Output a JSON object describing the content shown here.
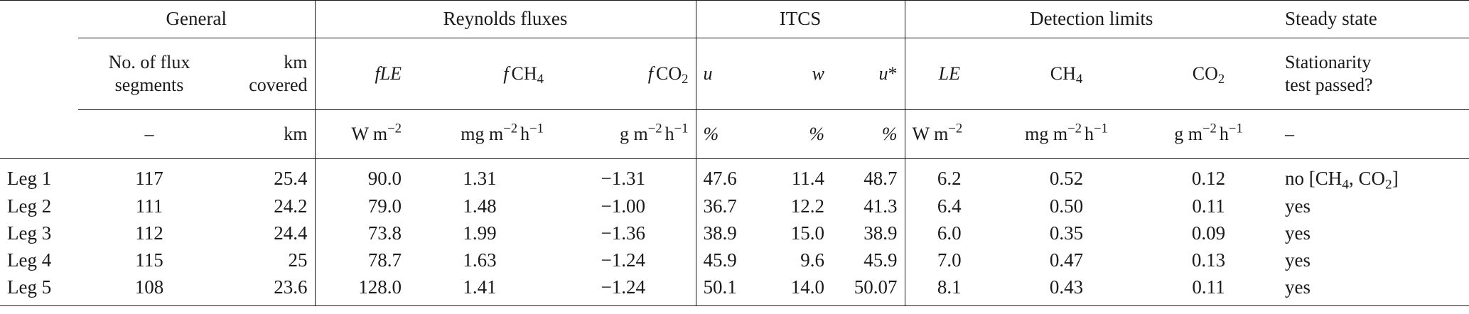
{
  "groups": {
    "general": "General",
    "reynolds": "Reynolds fluxes",
    "itcs": "ITCS",
    "detection": "Detection limits",
    "steady": "Steady state"
  },
  "subheaders": {
    "segments_line1": "No. of flux",
    "segments_line2": "segments",
    "km_line1": "km",
    "km_line2": "covered",
    "f_le_f": "f",
    "f_le_le": "LE",
    "f_ch4_f": "f",
    "f_ch4_main": "CH",
    "f_ch4_sub": "4",
    "f_co2_f": "f",
    "f_co2_main": "CO",
    "f_co2_sub": "2",
    "u": "u",
    "w": "w",
    "ustar": "u",
    "ustar_mark": "*",
    "le": "LE",
    "ch4_main": "CH",
    "ch4_sub": "4",
    "co2_main": "CO",
    "co2_sub": "2",
    "stationarity_line1": "Stationarity",
    "stationarity_line2": "test passed?"
  },
  "units": {
    "segments": "–",
    "km": "km",
    "w_m": "W m",
    "w_m_exp": "−2",
    "mg_m": "mg m",
    "mg_m_exp": "−2",
    "mg_h": "h",
    "mg_h_exp": "−1",
    "g_m": "g m",
    "g_m_exp": "−2",
    "g_h": "h",
    "g_h_exp": "−1",
    "pct_u": "%",
    "pct_w": "%",
    "pct_ustar": "%",
    "det_w_m": "W m",
    "det_w_m_exp": "−2",
    "det_mg_m": "mg m",
    "det_mg_m_exp": "−2",
    "det_mg_h": "h",
    "det_mg_h_exp": "−1",
    "det_g_m": "g m",
    "det_g_m_exp": "−2",
    "det_g_h": "h",
    "det_g_h_exp": "−1",
    "stationarity": "–"
  },
  "rows": [
    {
      "leg": "Leg 1",
      "segments": "117",
      "km": "25.4",
      "fle": "90.0",
      "fch4": "1.31",
      "fco2": "−1.31",
      "u": "47.6",
      "w": "11.4",
      "ustar": "48.7",
      "dle": "6.2",
      "dch4": "0.52",
      "dco2": "0.12",
      "stationarity": "no [CH",
      "stationarity_sub1": "4",
      "stationarity_mid": ", CO",
      "stationarity_sub2": "2",
      "stationarity_end": "]"
    },
    {
      "leg": "Leg 2",
      "segments": "111",
      "km": "24.2",
      "fle": "79.0",
      "fch4": "1.48",
      "fco2": "−1.00",
      "u": "36.7",
      "w": "12.2",
      "ustar": "41.3",
      "dle": "6.4",
      "dch4": "0.50",
      "dco2": "0.11",
      "stationarity": "yes"
    },
    {
      "leg": "Leg 3",
      "segments": "112",
      "km": "24.4",
      "fle": "73.8",
      "fch4": "1.99",
      "fco2": "−1.36",
      "u": "38.9",
      "w": "15.0",
      "ustar": "38.9",
      "dle": "6.0",
      "dch4": "0.35",
      "dco2": "0.09",
      "stationarity": "yes"
    },
    {
      "leg": "Leg 4",
      "segments": "115",
      "km": "25",
      "fle": "78.7",
      "fch4": "1.63",
      "fco2": "−1.24",
      "u": "45.9",
      "w": "9.6",
      "ustar": "45.9",
      "dle": "7.0",
      "dch4": "0.47",
      "dco2": "0.13",
      "stationarity": "yes"
    },
    {
      "leg": "Leg 5",
      "segments": "108",
      "km": "23.6",
      "fle": "128.0",
      "fch4": "1.41",
      "fco2": "−1.24",
      "u": "50.1",
      "w": "14.0",
      "ustar": "50.07",
      "dle": "8.1",
      "dch4": "0.43",
      "dco2": "0.11",
      "stationarity": "yes"
    }
  ]
}
